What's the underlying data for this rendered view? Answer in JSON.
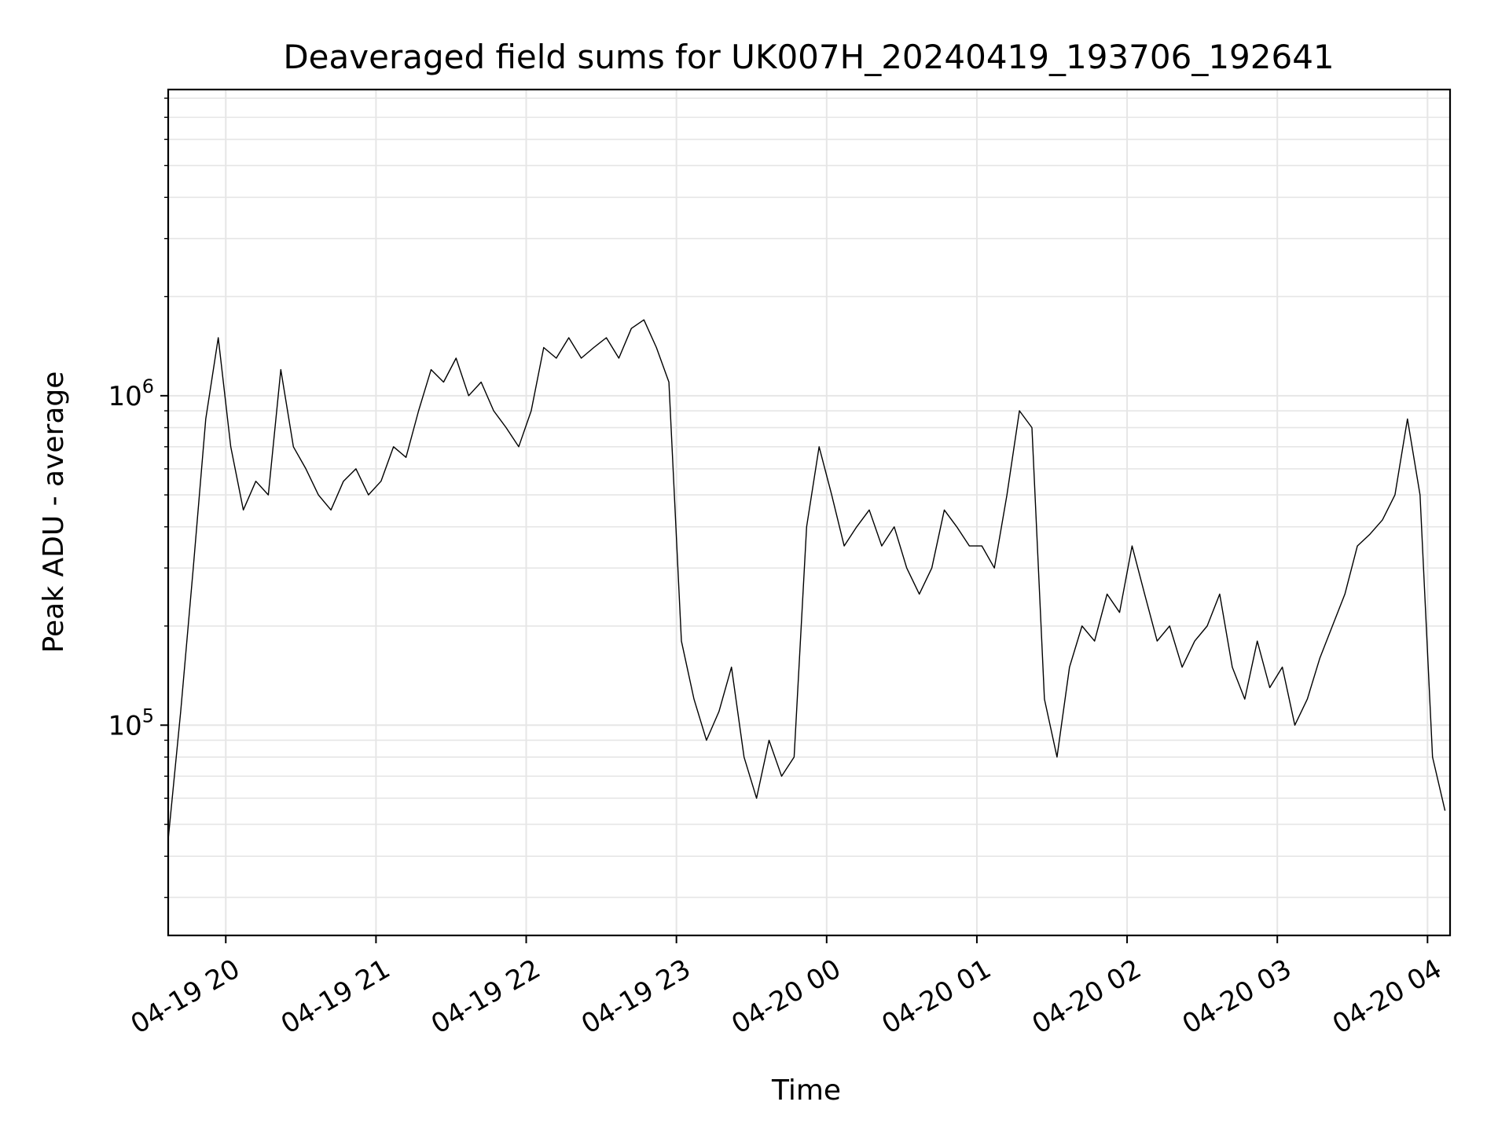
{
  "chart_data": {
    "type": "line",
    "title": "Deaveraged field sums for UK007H_20240419_193706_192641",
    "xlabel": "Time",
    "ylabel": "Peak ADU - average",
    "yscale": "log",
    "ylim": [
      23000,
      8500000
    ],
    "xlim": [
      "2024-04-19 19:37",
      "2024-04-20 04:09"
    ],
    "grid": true,
    "line_color": "#000000",
    "grid_color": "#e6e6e6",
    "x_ticks": [
      {
        "value": "2024-04-19 20:00",
        "label": "04-19 20"
      },
      {
        "value": "2024-04-19 21:00",
        "label": "04-19 21"
      },
      {
        "value": "2024-04-19 22:00",
        "label": "04-19 22"
      },
      {
        "value": "2024-04-19 23:00",
        "label": "04-19 23"
      },
      {
        "value": "2024-04-20 00:00",
        "label": "04-20 00"
      },
      {
        "value": "2024-04-20 01:00",
        "label": "04-20 01"
      },
      {
        "value": "2024-04-20 02:00",
        "label": "04-20 02"
      },
      {
        "value": "2024-04-20 03:00",
        "label": "04-20 03"
      },
      {
        "value": "2024-04-20 04:00",
        "label": "04-20 04"
      }
    ],
    "y_ticks": [
      {
        "value": 100000,
        "base": "10",
        "exp": "5"
      },
      {
        "value": 1000000,
        "base": "10",
        "exp": "6"
      }
    ],
    "series": [
      {
        "x": [
          "2024-04-19 19:37",
          "2024-04-19 19:42",
          "2024-04-19 19:47",
          "2024-04-19 19:52",
          "2024-04-19 19:57",
          "2024-04-19 20:02",
          "2024-04-19 20:07",
          "2024-04-19 20:12",
          "2024-04-19 20:17",
          "2024-04-19 20:22",
          "2024-04-19 20:27",
          "2024-04-19 20:32",
          "2024-04-19 20:37",
          "2024-04-19 20:42",
          "2024-04-19 20:47",
          "2024-04-19 20:52",
          "2024-04-19 20:57",
          "2024-04-19 21:02",
          "2024-04-19 21:07",
          "2024-04-19 21:12",
          "2024-04-19 21:17",
          "2024-04-19 21:22",
          "2024-04-19 21:27",
          "2024-04-19 21:32",
          "2024-04-19 21:37",
          "2024-04-19 21:42",
          "2024-04-19 21:47",
          "2024-04-19 21:52",
          "2024-04-19 21:57",
          "2024-04-19 22:02",
          "2024-04-19 22:07",
          "2024-04-19 22:12",
          "2024-04-19 22:17",
          "2024-04-19 22:22",
          "2024-04-19 22:27",
          "2024-04-19 22:32",
          "2024-04-19 22:37",
          "2024-04-19 22:42",
          "2024-04-19 22:47",
          "2024-04-19 22:52",
          "2024-04-19 22:57",
          "2024-04-19 23:02",
          "2024-04-19 23:07",
          "2024-04-19 23:12",
          "2024-04-19 23:17",
          "2024-04-19 23:22",
          "2024-04-19 23:27",
          "2024-04-19 23:32",
          "2024-04-19 23:37",
          "2024-04-19 23:42",
          "2024-04-19 23:47",
          "2024-04-19 23:52",
          "2024-04-19 23:57",
          "2024-04-20 00:02",
          "2024-04-20 00:07",
          "2024-04-20 00:12",
          "2024-04-20 00:17",
          "2024-04-20 00:22",
          "2024-04-20 00:27",
          "2024-04-20 00:32",
          "2024-04-20 00:37",
          "2024-04-20 00:42",
          "2024-04-20 00:47",
          "2024-04-20 00:52",
          "2024-04-20 00:57",
          "2024-04-20 01:02",
          "2024-04-20 01:07",
          "2024-04-20 01:12",
          "2024-04-20 01:17",
          "2024-04-20 01:22",
          "2024-04-20 01:27",
          "2024-04-20 01:32",
          "2024-04-20 01:37",
          "2024-04-20 01:42",
          "2024-04-20 01:47",
          "2024-04-20 01:52",
          "2024-04-20 01:57",
          "2024-04-20 02:02",
          "2024-04-20 02:07",
          "2024-04-20 02:12",
          "2024-04-20 02:17",
          "2024-04-20 02:22",
          "2024-04-20 02:27",
          "2024-04-20 02:32",
          "2024-04-20 02:37",
          "2024-04-20 02:42",
          "2024-04-20 02:47",
          "2024-04-20 02:52",
          "2024-04-20 02:57",
          "2024-04-20 03:02",
          "2024-04-20 03:07",
          "2024-04-20 03:12",
          "2024-04-20 03:17",
          "2024-04-20 03:22",
          "2024-04-20 03:27",
          "2024-04-20 03:32",
          "2024-04-20 03:37",
          "2024-04-20 03:42",
          "2024-04-20 03:47",
          "2024-04-20 03:52",
          "2024-04-20 03:57",
          "2024-04-20 04:02",
          "2024-04-20 04:07"
        ],
        "y": [
          45000,
          110000,
          300000,
          850000,
          1500000,
          700000,
          450000,
          550000,
          500000,
          1200000,
          700000,
          600000,
          500000,
          450000,
          550000,
          600000,
          500000,
          550000,
          700000,
          650000,
          900000,
          1200000,
          1100000,
          1300000,
          1000000,
          1100000,
          900000,
          800000,
          700000,
          900000,
          1400000,
          1300000,
          1500000,
          1300000,
          1400000,
          1500000,
          1300000,
          1600000,
          1700000,
          1400000,
          1100000,
          180000,
          120000,
          90000,
          110000,
          150000,
          80000,
          60000,
          90000,
          70000,
          80000,
          400000,
          700000,
          500000,
          350000,
          400000,
          450000,
          350000,
          400000,
          300000,
          250000,
          300000,
          450000,
          400000,
          350000,
          350000,
          300000,
          500000,
          900000,
          800000,
          120000,
          80000,
          150000,
          200000,
          180000,
          250000,
          220000,
          350000,
          250000,
          180000,
          200000,
          150000,
          180000,
          200000,
          250000,
          150000,
          120000,
          180000,
          130000,
          150000,
          100000,
          120000,
          160000,
          200000,
          250000,
          350000,
          380000,
          420000,
          500000,
          850000,
          500000,
          80000,
          55000
        ]
      }
    ]
  }
}
